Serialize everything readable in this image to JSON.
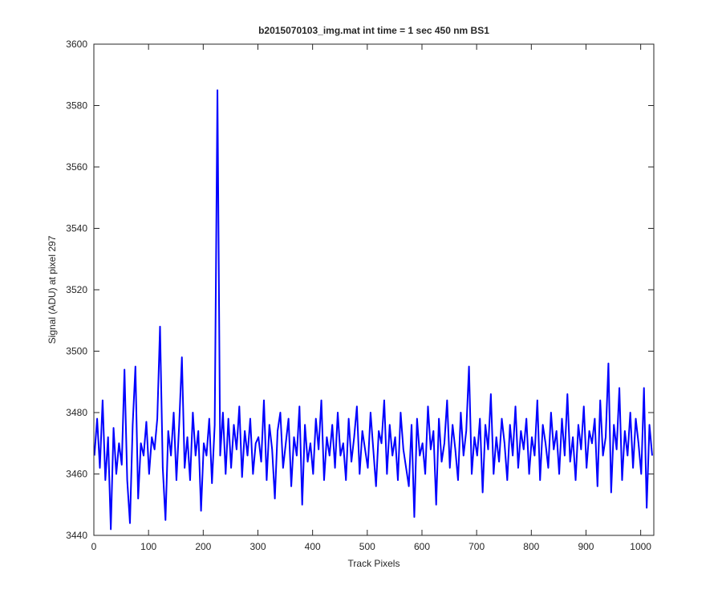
{
  "chart_data": {
    "type": "line",
    "title": "b2015070103_img.mat int time = 1 sec  450 nm BS1",
    "xlabel": "Track Pixels",
    "ylabel": "Signal (ADU) at pixel 297",
    "xlim": [
      0,
      1024
    ],
    "ylim": [
      3440,
      3600
    ],
    "xticks": [
      0,
      100,
      200,
      300,
      400,
      500,
      600,
      700,
      800,
      900,
      1000
    ],
    "yticks": [
      3440,
      3460,
      3480,
      3500,
      3520,
      3540,
      3560,
      3580,
      3600
    ],
    "grid": false,
    "x": [
      1,
      6,
      11,
      16,
      21,
      26,
      31,
      36,
      41,
      46,
      51,
      56,
      61,
      66,
      71,
      76,
      81,
      86,
      91,
      96,
      101,
      106,
      111,
      116,
      121,
      126,
      131,
      136,
      141,
      146,
      151,
      156,
      161,
      166,
      171,
      176,
      181,
      186,
      191,
      196,
      201,
      206,
      211,
      216,
      221,
      226,
      231,
      236,
      241,
      246,
      251,
      256,
      261,
      266,
      271,
      276,
      281,
      286,
      291,
      296,
      301,
      306,
      311,
      316,
      321,
      326,
      331,
      336,
      341,
      346,
      351,
      356,
      361,
      366,
      371,
      376,
      381,
      386,
      391,
      396,
      401,
      406,
      411,
      416,
      421,
      426,
      431,
      436,
      441,
      446,
      451,
      456,
      461,
      466,
      471,
      476,
      481,
      486,
      491,
      496,
      501,
      506,
      511,
      516,
      521,
      526,
      531,
      536,
      541,
      546,
      551,
      556,
      561,
      566,
      571,
      576,
      581,
      586,
      591,
      596,
      601,
      606,
      611,
      616,
      621,
      626,
      631,
      636,
      641,
      646,
      651,
      656,
      661,
      666,
      671,
      676,
      681,
      686,
      691,
      696,
      701,
      706,
      711,
      716,
      721,
      726,
      731,
      736,
      741,
      746,
      751,
      756,
      761,
      766,
      771,
      776,
      781,
      786,
      791,
      796,
      801,
      806,
      811,
      816,
      821,
      826,
      831,
      836,
      841,
      846,
      851,
      856,
      861,
      866,
      871,
      876,
      881,
      886,
      891,
      896,
      901,
      906,
      911,
      916,
      921,
      926,
      931,
      936,
      941,
      946,
      951,
      956,
      961,
      966,
      971,
      976,
      981,
      986,
      991,
      996,
      1001,
      1006,
      1011,
      1016,
      1021
    ],
    "series": [
      {
        "name": "signal",
        "color": "#0000ff",
        "values": [
          3466,
          3478,
          3462,
          3484,
          3458,
          3472,
          3442,
          3475,
          3460,
          3470,
          3463,
          3494,
          3458,
          3444,
          3476,
          3495,
          3452,
          3470,
          3466,
          3477,
          3460,
          3472,
          3468,
          3478,
          3508,
          3462,
          3445,
          3474,
          3466,
          3480,
          3458,
          3476,
          3498,
          3462,
          3472,
          3458,
          3480,
          3466,
          3474,
          3448,
          3470,
          3466,
          3478,
          3457,
          3476,
          3585,
          3466,
          3480,
          3460,
          3478,
          3462,
          3476,
          3468,
          3482,
          3459,
          3474,
          3466,
          3478,
          3460,
          3470,
          3472,
          3464,
          3484,
          3458,
          3476,
          3468,
          3452,
          3474,
          3480,
          3462,
          3470,
          3478,
          3456,
          3472,
          3466,
          3482,
          3450,
          3476,
          3464,
          3470,
          3460,
          3478,
          3468,
          3484,
          3458,
          3472,
          3466,
          3476,
          3462,
          3480,
          3466,
          3470,
          3458,
          3478,
          3464,
          3472,
          3482,
          3460,
          3474,
          3468,
          3462,
          3480,
          3468,
          3456,
          3474,
          3470,
          3484,
          3460,
          3476,
          3466,
          3472,
          3458,
          3480,
          3468,
          3462,
          3456,
          3476,
          3446,
          3478,
          3466,
          3470,
          3460,
          3482,
          3468,
          3474,
          3450,
          3478,
          3464,
          3470,
          3484,
          3462,
          3476,
          3468,
          3458,
          3480,
          3466,
          3474,
          3495,
          3460,
          3472,
          3466,
          3478,
          3454,
          3476,
          3468,
          3486,
          3460,
          3472,
          3464,
          3478,
          3470,
          3458,
          3476,
          3466,
          3482,
          3462,
          3474,
          3468,
          3478,
          3460,
          3472,
          3466,
          3484,
          3458,
          3476,
          3470,
          3462,
          3480,
          3468,
          3474,
          3460,
          3478,
          3466,
          3486,
          3464,
          3472,
          3458,
          3476,
          3468,
          3482,
          3462,
          3474,
          3470,
          3478,
          3456,
          3484,
          3466,
          3472,
          3496,
          3454,
          3476,
          3468,
          3488,
          3458,
          3474,
          3466,
          3480,
          3462,
          3478,
          3470,
          3460,
          3488,
          3449,
          3476,
          3466
        ]
      }
    ]
  }
}
